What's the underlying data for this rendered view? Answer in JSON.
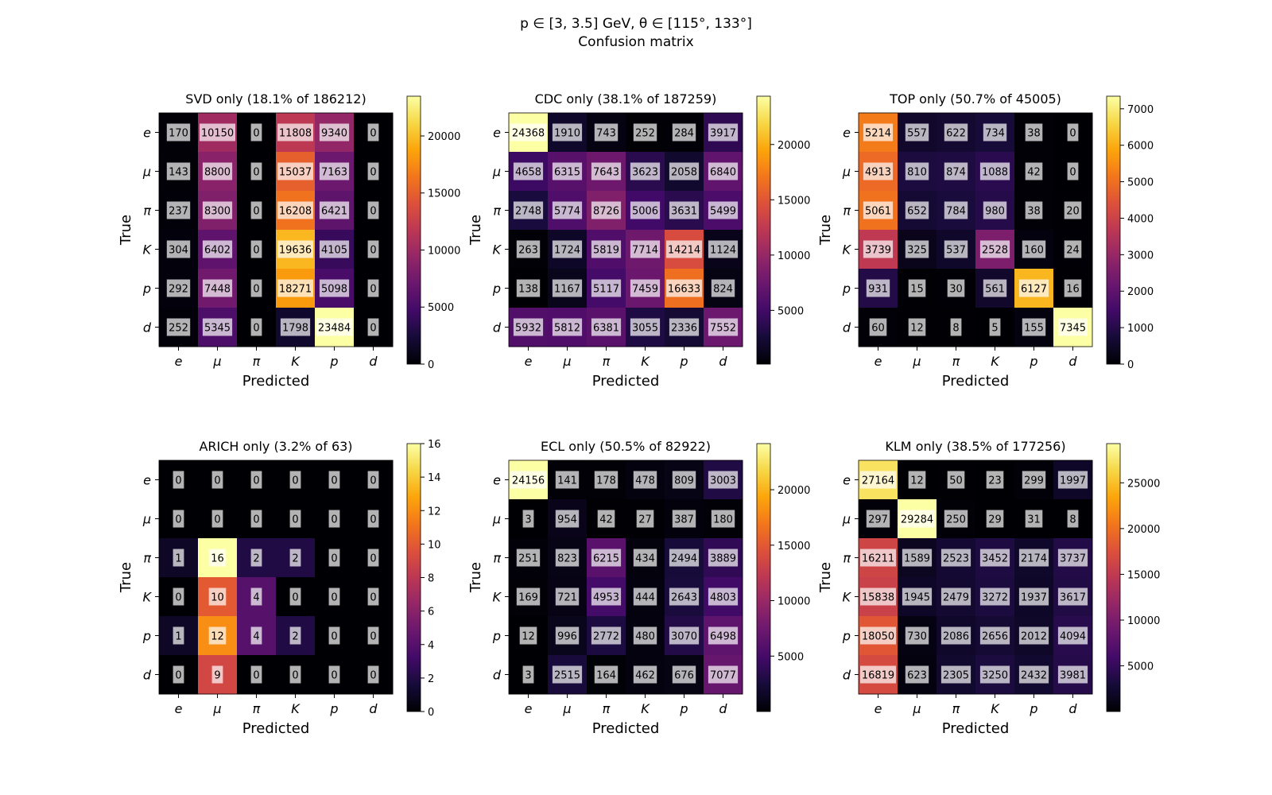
{
  "figure": {
    "suptitle_line1": "p ∈ [3, 3.5] GeV, θ ∈ [115°, 133°]",
    "suptitle_line2": "Confusion matrix"
  },
  "chart_data": [
    {
      "type": "heatmap",
      "title": "SVD only (18.1% of 186212)",
      "xlabel": "Predicted",
      "ylabel": "True",
      "x_categories": [
        "e",
        "μ",
        "π",
        "K",
        "p",
        "d"
      ],
      "y_categories": [
        "e",
        "μ",
        "π",
        "K",
        "p",
        "d"
      ],
      "values": [
        [
          170,
          10150,
          0,
          11808,
          9340,
          0
        ],
        [
          143,
          8800,
          0,
          15037,
          7163,
          0
        ],
        [
          237,
          8300,
          0,
          16208,
          6421,
          0
        ],
        [
          304,
          6402,
          0,
          19636,
          4105,
          0
        ],
        [
          292,
          7448,
          0,
          18271,
          5098,
          0
        ],
        [
          252,
          5345,
          0,
          1798,
          23484,
          0
        ]
      ],
      "colorbar_range": [
        0,
        23484
      ],
      "colorbar_ticks": [
        0,
        5000,
        10000,
        15000,
        20000
      ],
      "colormap": "inferno"
    },
    {
      "type": "heatmap",
      "title": "CDC only (38.1% of 187259)",
      "xlabel": "Predicted",
      "ylabel": "True",
      "x_categories": [
        "e",
        "μ",
        "π",
        "K",
        "p",
        "d"
      ],
      "y_categories": [
        "e",
        "μ",
        "π",
        "K",
        "p",
        "d"
      ],
      "values": [
        [
          24368,
          1910,
          743,
          252,
          284,
          3917
        ],
        [
          4658,
          6315,
          7643,
          3623,
          2058,
          6840
        ],
        [
          2748,
          5774,
          8726,
          5006,
          3631,
          5499
        ],
        [
          263,
          1724,
          5819,
          7714,
          14214,
          1124
        ],
        [
          138,
          1167,
          5117,
          7459,
          16633,
          824
        ],
        [
          5932,
          5812,
          6381,
          3055,
          2336,
          7552
        ]
      ],
      "colorbar_range": [
        138,
        24368
      ],
      "colorbar_ticks": [
        5000,
        10000,
        15000,
        20000
      ],
      "colormap": "inferno"
    },
    {
      "type": "heatmap",
      "title": "TOP only (50.7% of 45005)",
      "xlabel": "Predicted",
      "ylabel": "True",
      "x_categories": [
        "e",
        "μ",
        "π",
        "K",
        "p",
        "d"
      ],
      "y_categories": [
        "e",
        "μ",
        "π",
        "K",
        "p",
        "d"
      ],
      "values": [
        [
          5214,
          557,
          622,
          734,
          38,
          0
        ],
        [
          4913,
          810,
          874,
          1088,
          42,
          0
        ],
        [
          5061,
          652,
          784,
          980,
          38,
          20
        ],
        [
          3739,
          325,
          537,
          2528,
          160,
          24
        ],
        [
          931,
          15,
          30,
          561,
          6127,
          16
        ],
        [
          60,
          12,
          8,
          5,
          155,
          7345
        ]
      ],
      "colorbar_range": [
        0,
        7345
      ],
      "colorbar_ticks": [
        0,
        1000,
        2000,
        3000,
        4000,
        5000,
        6000,
        7000
      ],
      "colormap": "inferno"
    },
    {
      "type": "heatmap",
      "title": "ARICH only (3.2% of 63)",
      "xlabel": "Predicted",
      "ylabel": "True",
      "x_categories": [
        "e",
        "μ",
        "π",
        "K",
        "p",
        "d"
      ],
      "y_categories": [
        "e",
        "μ",
        "π",
        "K",
        "p",
        "d"
      ],
      "values": [
        [
          0,
          0,
          0,
          0,
          0,
          0
        ],
        [
          0,
          0,
          0,
          0,
          0,
          0
        ],
        [
          1,
          16,
          2,
          2,
          0,
          0
        ],
        [
          0,
          10,
          4,
          0,
          0,
          0
        ],
        [
          1,
          12,
          4,
          2,
          0,
          0
        ],
        [
          0,
          9,
          0,
          0,
          0,
          0
        ]
      ],
      "colorbar_range": [
        0,
        16
      ],
      "colorbar_ticks": [
        0,
        2,
        4,
        6,
        8,
        10,
        12,
        14,
        16
      ],
      "colormap": "inferno"
    },
    {
      "type": "heatmap",
      "title": "ECL only (50.5% of 82922)",
      "xlabel": "Predicted",
      "ylabel": "True",
      "x_categories": [
        "e",
        "μ",
        "π",
        "K",
        "p",
        "d"
      ],
      "y_categories": [
        "e",
        "μ",
        "π",
        "K",
        "p",
        "d"
      ],
      "values": [
        [
          24156,
          141,
          178,
          478,
          809,
          3003
        ],
        [
          3,
          954,
          42,
          27,
          387,
          180
        ],
        [
          251,
          823,
          6215,
          434,
          2494,
          3889
        ],
        [
          169,
          721,
          4953,
          444,
          2643,
          4803
        ],
        [
          12,
          996,
          2772,
          480,
          3070,
          6498
        ],
        [
          3,
          2515,
          164,
          462,
          676,
          7077
        ]
      ],
      "colorbar_range": [
        3,
        24156
      ],
      "colorbar_ticks": [
        5000,
        10000,
        15000,
        20000
      ],
      "colormap": "inferno"
    },
    {
      "type": "heatmap",
      "title": "KLM only (38.5% of 177256)",
      "xlabel": "Predicted",
      "ylabel": "True",
      "x_categories": [
        "e",
        "μ",
        "π",
        "K",
        "p",
        "d"
      ],
      "y_categories": [
        "e",
        "μ",
        "π",
        "K",
        "p",
        "d"
      ],
      "values": [
        [
          27164,
          12,
          50,
          23,
          299,
          1997
        ],
        [
          297,
          29284,
          250,
          29,
          31,
          8
        ],
        [
          16211,
          1589,
          2523,
          3452,
          2174,
          3737
        ],
        [
          15838,
          1945,
          2479,
          3272,
          1937,
          3617
        ],
        [
          18050,
          730,
          2086,
          2656,
          2012,
          4094
        ],
        [
          16819,
          623,
          2305,
          3250,
          2432,
          3981
        ]
      ],
      "colorbar_range": [
        8,
        29284
      ],
      "colorbar_ticks": [
        5000,
        10000,
        15000,
        20000,
        25000
      ],
      "colormap": "inferno"
    }
  ]
}
